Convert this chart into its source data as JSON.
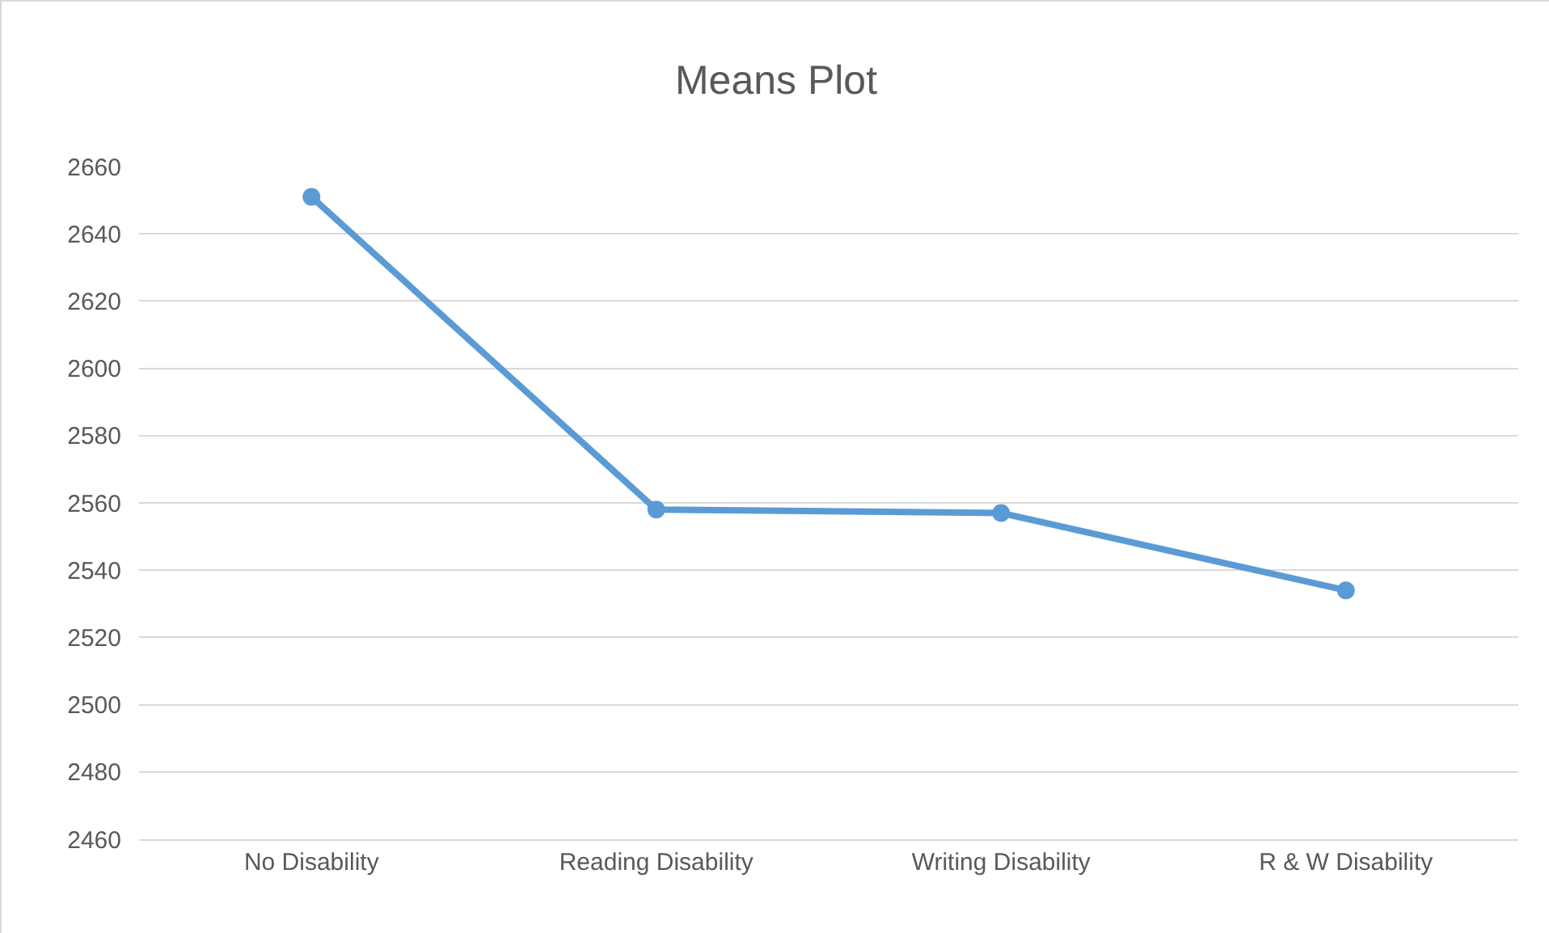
{
  "chart_data": {
    "type": "line",
    "title": "Means Plot",
    "categories": [
      "No Disability",
      "Reading Disability",
      "Writing Disability",
      "R & W Disability"
    ],
    "series": [
      {
        "color": "#5b9bd5",
        "values": [
          2651,
          2558,
          2557,
          2534
        ]
      }
    ],
    "ylim": [
      2460,
      2660
    ],
    "yticks": [
      2460,
      2480,
      2500,
      2520,
      2540,
      2560,
      2580,
      2600,
      2620,
      2640,
      2660
    ],
    "grid": "y",
    "marker": "circle",
    "line_style": "solid"
  }
}
